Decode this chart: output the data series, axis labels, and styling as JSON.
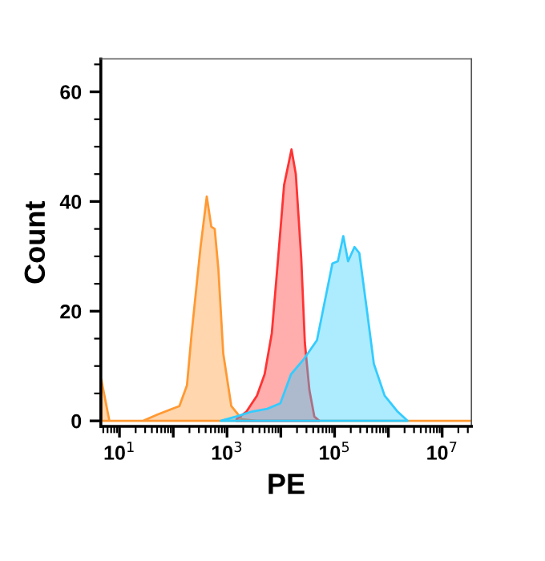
{
  "chart_data": {
    "type": "area",
    "xlabel": "PE",
    "ylabel": "Count",
    "log": "x",
    "legend": false,
    "grid": false,
    "xlim": [
      4.5,
      35000000
    ],
    "ylim": [
      -1,
      66
    ],
    "xticks": [
      {
        "value": 10,
        "label": "10$^{1}$"
      },
      {
        "value": 100,
        "label": null
      },
      {
        "value": 1000,
        "label": "10$^{3}$"
      },
      {
        "value": 10000,
        "label": null
      },
      {
        "value": 100000,
        "label": "10$^{5}$"
      },
      {
        "value": 1000000,
        "label": null
      },
      {
        "value": 10000000,
        "label": "10$^{7}$"
      }
    ],
    "yticks": [
      0,
      20,
      40,
      60
    ],
    "series": [
      {
        "color": "#ff9933",
        "x": [
          4.6,
          6.5,
          27,
          52,
          130,
          180,
          220,
          320,
          420,
          510,
          590,
          690,
          850,
          1200,
          1900,
          3600,
          35000000
        ],
        "values": [
          7.5,
          0,
          0,
          1.2,
          2.7,
          6.5,
          16,
          31.5,
          40.9,
          35.4,
          35,
          27.7,
          12.3,
          2.7,
          0.3,
          0,
          0
        ]
      },
      {
        "color": "#ff3333",
        "x": [
          1500,
          2300,
          3600,
          5000,
          6800,
          8900,
          11500,
          15800,
          19000,
          24000,
          28000,
          34000,
          42000,
          52000
        ],
        "values": [
          0.3,
          1.7,
          4.6,
          8.5,
          16,
          29.6,
          43,
          49.5,
          45,
          29.6,
          14.2,
          5.6,
          0.8,
          0
        ]
      },
      {
        "color": "#33ccff",
        "x": [
          760,
          1500,
          2900,
          5600,
          9800,
          15500,
          27000,
          47000,
          66000,
          91000,
          115000,
          145000,
          178000,
          234000,
          288000,
          389000,
          537000,
          851000,
          1480000,
          2290000
        ],
        "values": [
          0,
          0.8,
          1.7,
          2.2,
          3.2,
          8.5,
          11.3,
          14.7,
          21.9,
          28.7,
          29.1,
          33.7,
          29.1,
          31.7,
          30.6,
          21,
          10.4,
          4.6,
          1.7,
          0
        ]
      }
    ]
  }
}
